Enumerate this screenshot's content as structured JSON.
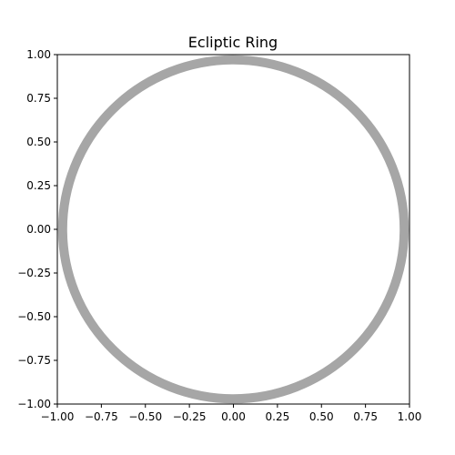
{
  "chart_data": {
    "type": "line",
    "title": "Ecliptic Ring",
    "xlabel": "",
    "ylabel": "",
    "xlim": [
      -1.0,
      1.0
    ],
    "ylim": [
      -1.0,
      1.0
    ],
    "grid": false,
    "x_ticks": [
      "−1.00",
      "−0.75",
      "−0.50",
      "−0.25",
      "0.00",
      "0.25",
      "0.50",
      "0.75",
      "1.00"
    ],
    "x_tick_values": [
      -1.0,
      -0.75,
      -0.5,
      -0.25,
      0.0,
      0.25,
      0.5,
      0.75,
      1.0
    ],
    "y_ticks": [
      "−1.00",
      "−0.75",
      "−0.50",
      "−0.25",
      "0.00",
      "0.25",
      "0.50",
      "0.75",
      "1.00"
    ],
    "y_tick_values": [
      -1.0,
      -0.75,
      -0.5,
      -0.25,
      0.0,
      0.25,
      0.5,
      0.75,
      1.0
    ],
    "series": [
      {
        "shape": "circle",
        "center": [
          0.0,
          0.0
        ],
        "radius": 0.97,
        "color": "#a6a6a6"
      }
    ]
  }
}
